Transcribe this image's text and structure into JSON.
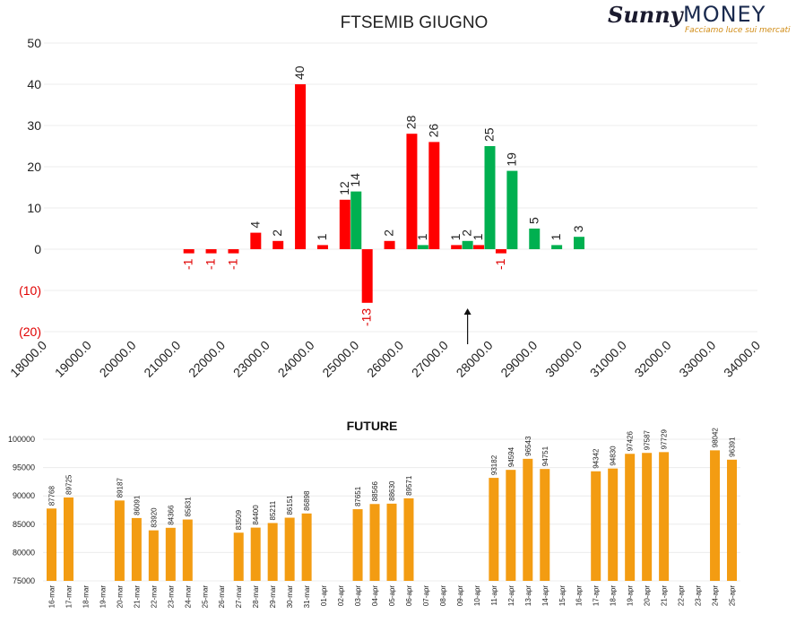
{
  "logo": {
    "brand_left": "Sunny",
    "brand_right": "MONEY",
    "tagline": "Facciamo luce sui mercati"
  },
  "chart_data": [
    {
      "type": "bar",
      "title": "FTSEMIB GIUGNO",
      "xlabel": "",
      "ylabel": "",
      "ylim": [
        -20,
        50
      ],
      "y_ticks": [
        "(20)",
        "(10)",
        "0",
        "10",
        "20",
        "30",
        "40",
        "50"
      ],
      "y_tick_values": [
        -20,
        -10,
        0,
        10,
        20,
        30,
        40,
        50
      ],
      "x_range": [
        18000,
        34000
      ],
      "x_ticks": [
        "18000.0",
        "19000.0",
        "20000.0",
        "21000.0",
        "22000.0",
        "23000.0",
        "24000.0",
        "25000.0",
        "26000.0",
        "27000.0",
        "28000.0",
        "29000.0",
        "30000.0",
        "31000.0",
        "32000.0",
        "33000.0",
        "34000.0"
      ],
      "x_tick_values": [
        18000,
        19000,
        20000,
        21000,
        22000,
        23000,
        24000,
        25000,
        26000,
        27000,
        28000,
        29000,
        30000,
        31000,
        32000,
        33000,
        34000
      ],
      "series": [
        {
          "color": "#ff0000",
          "points": [
            {
              "x": 21250,
              "y": -1
            },
            {
              "x": 21750,
              "y": -1
            },
            {
              "x": 22250,
              "y": -1
            },
            {
              "x": 22750,
              "y": 4
            },
            {
              "x": 23250,
              "y": 2
            },
            {
              "x": 23750,
              "y": 40
            },
            {
              "x": 24250,
              "y": 1
            },
            {
              "x": 24750,
              "y": 12
            },
            {
              "x": 25250,
              "y": -13
            },
            {
              "x": 25750,
              "y": 2
            },
            {
              "x": 26250,
              "y": 28
            },
            {
              "x": 26750,
              "y": 26
            },
            {
              "x": 27250,
              "y": 1
            },
            {
              "x": 27750,
              "y": 1
            },
            {
              "x": 28250,
              "y": -1
            }
          ]
        },
        {
          "color": "#00b050",
          "points": [
            {
              "x": 25000,
              "y": 14
            },
            {
              "x": 26500,
              "y": 1
            },
            {
              "x": 27500,
              "y": 2
            },
            {
              "x": 28000,
              "y": 25
            },
            {
              "x": 28500,
              "y": 19
            },
            {
              "x": 29000,
              "y": 5
            },
            {
              "x": 29500,
              "y": 1
            },
            {
              "x": 30000,
              "y": 3
            }
          ]
        }
      ],
      "annotation": {
        "type": "arrow-up",
        "x": 27500
      }
    },
    {
      "type": "bar",
      "title": "FUTURE",
      "color": "#f39c12",
      "ylim": [
        75000,
        100000
      ],
      "y_ticks": [
        "75000",
        "80000",
        "85000",
        "90000",
        "95000",
        "100000"
      ],
      "y_tick_values": [
        75000,
        80000,
        85000,
        90000,
        95000,
        100000
      ],
      "categories": [
        "16-mar",
        "17-mar",
        "18-mar",
        "19-mar",
        "20-mar",
        "21-mar",
        "22-mar",
        "23-mar",
        "24-mar",
        "25-mar",
        "26-mar",
        "27-mar",
        "28-mar",
        "29-mar",
        "30-mar",
        "31-mar",
        "01-apr",
        "02-apr",
        "03-apr",
        "04-apr",
        "05-apr",
        "06-apr",
        "07-apr",
        "08-apr",
        "09-apr",
        "10-apr",
        "11-apr",
        "12-apr",
        "13-apr",
        "14-apr",
        "15-apr",
        "16-apr",
        "17-apr",
        "18-apr",
        "19-apr",
        "20-apr",
        "21-apr",
        "22-apr",
        "23-apr",
        "24-apr",
        "25-apr"
      ],
      "values": [
        87768,
        89725,
        null,
        null,
        89187,
        86091,
        83920,
        84366,
        85831,
        null,
        null,
        83509,
        84400,
        85211,
        86151,
        86898,
        null,
        null,
        87651,
        88566,
        88630,
        89571,
        null,
        null,
        null,
        null,
        93182,
        94594,
        96543,
        94751,
        null,
        null,
        94342,
        94830,
        97426,
        97587,
        97729,
        null,
        null,
        98042,
        96391
      ]
    }
  ]
}
